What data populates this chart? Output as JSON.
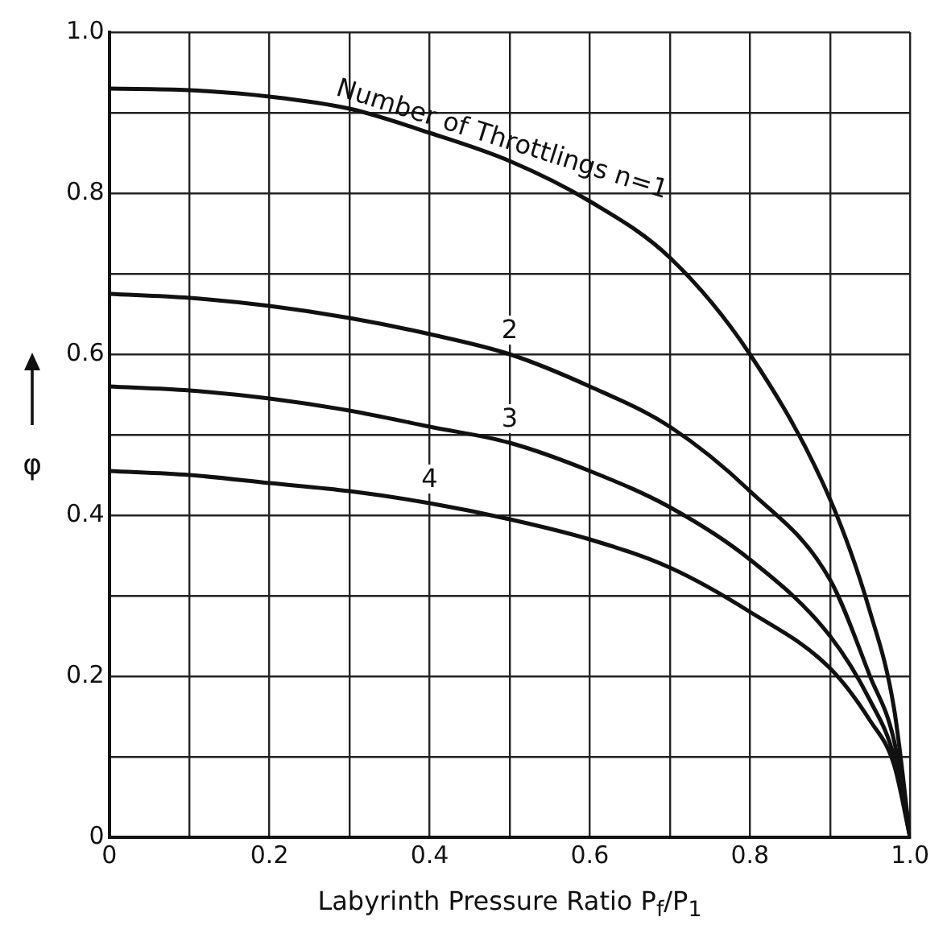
{
  "chart_data": {
    "type": "line",
    "xlabel": "Labyrinth Pressure Ratio P$_{f}$/P$_{1}$",
    "ylabel": "φ",
    "xlim": [
      0,
      1
    ],
    "ylim": [
      0,
      1
    ],
    "xticks": [
      0,
      {
        "value": 0.1,
        "label": null
      },
      0.2,
      {
        "value": 0.3,
        "label": null
      },
      0.4,
      {
        "value": 0.5,
        "label": null
      },
      0.6,
      {
        "value": 0.7,
        "label": null
      },
      0.8,
      {
        "value": 0.9,
        "label": null
      },
      {
        "value": 1,
        "label": "1.0"
      }
    ],
    "yticks": [
      0,
      {
        "value": 0.1,
        "label": null
      },
      0.2,
      {
        "value": 0.3,
        "label": null
      },
      0.4,
      {
        "value": 0.5,
        "label": null
      },
      0.6,
      {
        "value": 0.7,
        "label": null
      },
      0.8,
      {
        "value": 0.9,
        "label": null
      },
      {
        "value": 1,
        "label": "1.0"
      }
    ],
    "grid": true,
    "legend": false,
    "marker": "none",
    "line_style": "solid",
    "x": [
      0,
      0.1,
      0.2,
      0.3,
      0.4,
      0.5,
      0.6,
      0.7,
      0.8,
      0.9,
      0.95,
      0.98,
      1.0
    ],
    "series": [
      {
        "name": "Number of Throttlings n=1",
        "color": "#111111",
        "values": [
          0.93,
          0.928,
          0.92,
          0.905,
          0.875,
          0.84,
          0.79,
          0.72,
          0.6,
          0.42,
          0.28,
          0.16,
          0
        ]
      },
      {
        "name": "2",
        "color": "#111111",
        "values": [
          0.675,
          0.67,
          0.66,
          0.645,
          0.625,
          0.6,
          0.56,
          0.51,
          0.43,
          0.32,
          0.2,
          0.12,
          0
        ]
      },
      {
        "name": "3",
        "color": "#111111",
        "values": [
          0.56,
          0.555,
          0.545,
          0.53,
          0.51,
          0.49,
          0.455,
          0.41,
          0.345,
          0.25,
          0.17,
          0.1,
          0
        ]
      },
      {
        "name": "4",
        "color": "#111111",
        "values": [
          0.455,
          0.45,
          0.44,
          0.43,
          0.415,
          0.395,
          0.37,
          0.335,
          0.28,
          0.21,
          0.145,
          0.09,
          0
        ]
      }
    ]
  }
}
